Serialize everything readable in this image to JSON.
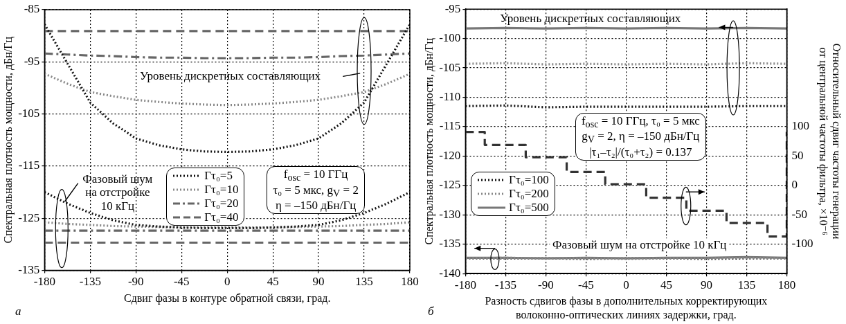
{
  "chart_data": [
    {
      "type": "line",
      "x": [
        -180,
        -157.5,
        -135,
        -112.5,
        -90,
        -67.5,
        -45,
        -22.5,
        0,
        22.5,
        45,
        67.5,
        90,
        112.5,
        135,
        157.5,
        180
      ],
      "xlim": [
        -180,
        180
      ],
      "xticks": [
        -180,
        -135,
        -90,
        -45,
        0,
        45,
        90,
        135,
        180
      ],
      "ylim": [
        -135,
        -85
      ],
      "yticks": [
        -135,
        -125,
        -115,
        -105,
        -95,
        -85
      ],
      "grid": true,
      "legend": "bottom",
      "xlabel": "Сдвиг фазы в контуре обратной связи, град.",
      "ylabel": "Спектральная плотность мощности, дБн/Гц",
      "annotations": [
        "Уровень дискретных составляющих",
        {
          "text": "Фазовый шум\nна отстройке\n10 кГц",
          "x": -163,
          "y": -127
        },
        "f$_{osc}$ = 10 ГГц\nτ₀ = 5 мкс, g$_{V}$ = 2\nη = –150 дБн/Гц",
        "а"
      ],
      "series": [
        {
          "name": "Γτ₀=5",
          "color": "#111111",
          "line_style": "dotted",
          "values": [
            -87.8,
            -95.3,
            -102.8,
            -106.8,
            -109.7,
            -111,
            -111.8,
            -112.2,
            -112.3,
            -112.2,
            -111.8,
            -111,
            -109.7,
            -106.8,
            -102.8,
            -95.3,
            -87.8
          ]
        },
        {
          "name": "Γτ₀=10",
          "color": "#888888",
          "line_style": "dotted",
          "values": [
            -97.3,
            -99.2,
            -100.8,
            -101.6,
            -102.3,
            -102.7,
            -103,
            -103.2,
            -103.3,
            -103.2,
            -103,
            -102.7,
            -102.3,
            -101.6,
            -100.8,
            -99.2,
            -97.3
          ]
        },
        {
          "name": "Γτ₀=20",
          "color": "#666666",
          "line_style": "dashdot",
          "values": [
            -93.4,
            -93.6,
            -93.8,
            -93.9,
            -94.1,
            -94.2,
            -94.2,
            -94.3,
            -94.3,
            -94.3,
            -94.2,
            -94.2,
            -94.1,
            -93.9,
            -93.8,
            -93.6,
            -93.4
          ]
        },
        {
          "name": "Γτ₀=40",
          "color": "#666666",
          "line_style": "dashed",
          "values": [
            -89.1,
            -89.1,
            -89.1,
            -89.1,
            -89.1,
            -89.1,
            -89.1,
            -89.1,
            -89.1,
            -89.1,
            -89.1,
            -89.1,
            -89.1,
            -89.1,
            -89.1,
            -89.1,
            -89.1
          ]
        },
        {
          "color": "#111111",
          "line_style": "dotted",
          "values": [
            -120,
            -122.2,
            -124,
            -125.4,
            -126.3,
            -126.6,
            -126.8,
            -126.9,
            -126.9,
            -126.9,
            -126.8,
            -126.6,
            -126.3,
            -125.4,
            -124,
            -122.2,
            -120
          ]
        },
        {
          "color": "#888888",
          "line_style": "dotted",
          "values": [
            -125.8,
            -126.1,
            -126.3,
            -126.5,
            -126.6,
            -126.7,
            -126.8,
            -126.8,
            -126.8,
            -126.8,
            -126.8,
            -126.7,
            -126.6,
            -126.5,
            -126.3,
            -126.1,
            -125.8
          ]
        },
        {
          "color": "#666666",
          "line_style": "dashdot",
          "values": [
            -127.4,
            -127.4,
            -127.4,
            -127.4,
            -127.4,
            -127.4,
            -127.4,
            -127.4,
            -127.4,
            -127.4,
            -127.4,
            -127.4,
            -127.4,
            -127.4,
            -127.4,
            -127.4,
            -127.4
          ]
        },
        {
          "color": "#666666",
          "line_style": "dashed",
          "values": [
            -129.7,
            -129.7,
            -129.7,
            -129.7,
            -129.7,
            -129.7,
            -129.7,
            -129.7,
            -129.7,
            -129.7,
            -129.7,
            -129.7,
            -129.7,
            -129.7,
            -129.7,
            -129.7,
            -129.7
          ]
        }
      ]
    },
    {
      "type": "line",
      "x": [
        -180,
        -135,
        -90,
        -45,
        0,
        45,
        90,
        135,
        180
      ],
      "xlim": [
        -180,
        180
      ],
      "xticks": [
        -180,
        -135,
        -90,
        -45,
        0,
        45,
        90,
        135,
        180
      ],
      "ylim": [
        -140,
        -95
      ],
      "yticks": [
        -140,
        -135,
        -130,
        -125,
        -120,
        -115,
        -110,
        -105,
        -100,
        -95
      ],
      "y2lim": [
        -150,
        300
      ],
      "y2ticks": [
        -100,
        -50,
        0,
        50,
        100
      ],
      "grid": true,
      "legend": "bottom left",
      "xlabel": "Разность сдвигов фазы в дополнительных корректирующих\nволоконно-оптических линиях задержки, град.",
      "ylabel": "Спектральная плотность мощности, дБн/Гц",
      "y2label": "Относительный сдвиг частоты генерации\nот центральной частоты фильтра, ×10⁻⁶",
      "annotations": [
        "Уровень дискретных составляющих",
        "Фазовый шум на отстройке 10 кГц",
        "f$_{osc}$ = 10 ГГц, τ₀ = 5 мкс\ng$_{V}$ = 2, η = –150 дБн/Гц\n|τ₁–τ₂|/(τ₀+τ₂) = 0.137",
        "б"
      ],
      "series": [
        {
          "name": "Γτ₀=100",
          "color": "#111111",
          "line_style": "dotted",
          "values": [
            -111.5,
            -111.4,
            -111.7,
            -111.6,
            -111.6,
            -111.6,
            -111.6,
            -111.5,
            -111.5
          ]
        },
        {
          "name": "Γτ₀=200",
          "color": "#888888",
          "line_style": "dotted",
          "values": [
            -104.3,
            -104.2,
            -104.4,
            -104.3,
            -104.4,
            -104.3,
            -104.4,
            -104.2,
            -104.3
          ]
        },
        {
          "name": "Γτ₀=500",
          "color": "#777777",
          "line_style": "solid",
          "values": [
            -98.3,
            -98.2,
            -98.3,
            -98.2,
            -98.3,
            -98.2,
            -98.3,
            -98.2,
            -98.3
          ]
        },
        {
          "color": "#888888",
          "line_style": "dotted",
          "values": [
            -137.4,
            -137.3,
            -137.4,
            -137.4,
            -137.5,
            -137.4,
            -137.4,
            -137.3,
            -137.4
          ]
        },
        {
          "color": "#777777",
          "line_style": "solid",
          "values": [
            -137.3,
            -137.3,
            -137.4,
            -137.3,
            -137.4,
            -137.3,
            -137.3,
            -137.2,
            -137.3
          ]
        },
        {
          "color": "#111111",
          "line_style": "dotted",
          "values": [
            -137.4,
            -137.4,
            -137.4,
            -137.5,
            -137.4,
            -137.4,
            -137.5,
            -137.4,
            -137.4
          ]
        },
        {
          "type": "step",
          "axis": "y2",
          "color": "#333333",
          "line_style": "dashed",
          "x": [
            -180,
            -158.4,
            -112.5,
            -66.6,
            -23.4,
            22.5,
            67.5,
            112.5,
            158.4,
            180
          ],
          "values": [
            91,
            69,
            48,
            23,
            2,
            -21,
            -43,
            -64,
            -87,
            91
          ]
        }
      ]
    }
  ]
}
